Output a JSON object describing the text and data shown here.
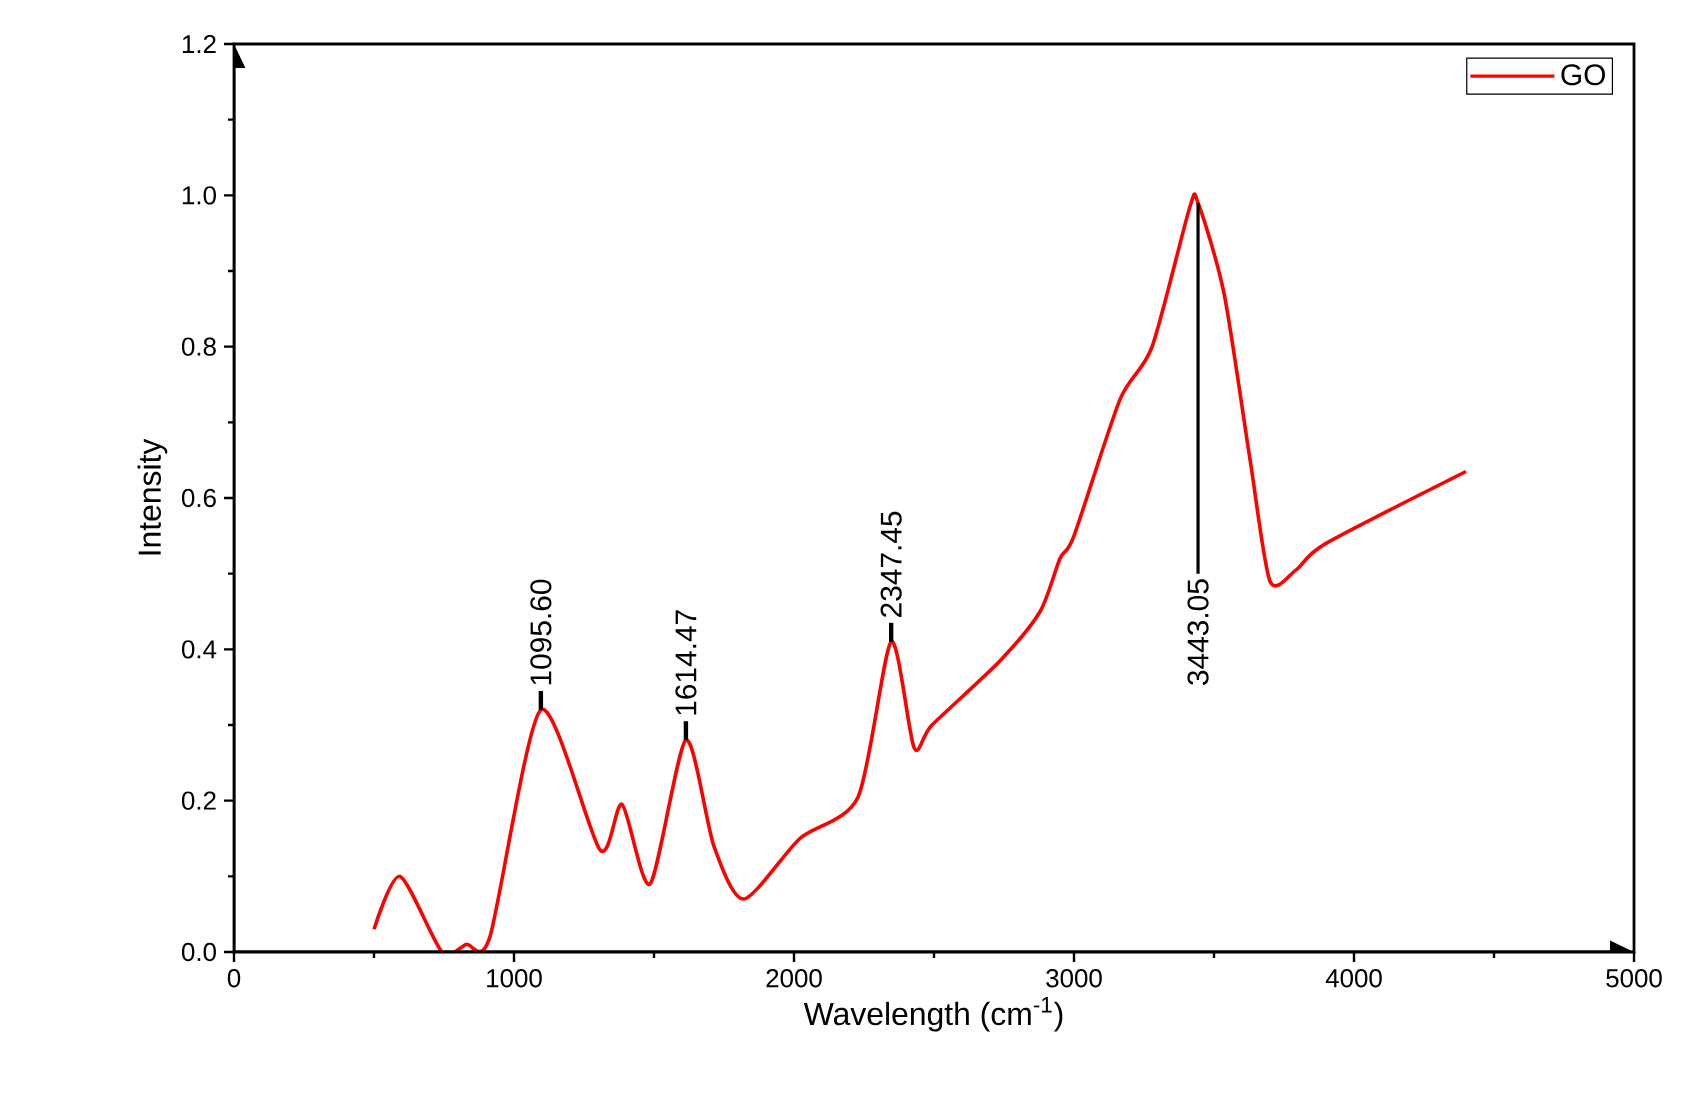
{
  "chart_data": {
    "type": "line",
    "xlabel": "Wavelength (cm$^{-1}$)",
    "ylabel": "Intensity",
    "xlim": [
      0,
      5000
    ],
    "xticks": [
      0,
      1000,
      2000,
      3000,
      4000,
      5000
    ],
    "ylim": [
      0,
      1.2
    ],
    "yticks": [
      {
        "value": 0,
        "label": "0.0"
      },
      {
        "value": 0.2,
        "label": "0.2"
      },
      {
        "value": 0.4,
        "label": "0.4"
      },
      {
        "value": 0.6,
        "label": "0.6"
      },
      {
        "value": 0.8,
        "label": "0.8"
      },
      {
        "value": 1.0,
        "label": "1.0"
      },
      {
        "value": 1.2,
        "label": "1.2"
      }
    ],
    "grid": false,
    "legend": "top right",
    "marker": "none",
    "line_style": "solid",
    "series": [
      {
        "name": "GO",
        "color": "#ff0000",
        "x": [
          500,
          593,
          743,
          829,
          914,
          1096,
          1307,
          1386,
          1486,
          1614,
          1714,
          1821,
          2021,
          2229,
          2347,
          2429,
          2493,
          2736,
          2879,
          2950,
          3000,
          3164,
          3279,
          3414,
          3443,
          3536,
          3629,
          3700,
          3793,
          3900,
          4400
        ],
        "values": [
          0.03,
          0.1,
          0.0,
          0.01,
          0.02,
          0.32,
          0.135,
          0.195,
          0.09,
          0.28,
          0.14,
          0.07,
          0.15,
          0.205,
          0.41,
          0.27,
          0.3,
          0.385,
          0.45,
          0.52,
          0.55,
          0.73,
          0.8,
          0.985,
          0.99,
          0.87,
          0.65,
          0.49,
          0.505,
          0.54,
          0.635
        ]
      }
    ],
    "annotations": [
      {
        "text": "1095.60",
        "x": 1096,
        "y": 0.32
      },
      {
        "text": "1614.47",
        "x": 1614,
        "y": 0.28
      },
      {
        "text": "2347.45",
        "x": 2347,
        "y": 0.41
      },
      {
        "text": "3443.05",
        "x": 3443,
        "y": 0.99
      }
    ]
  }
}
